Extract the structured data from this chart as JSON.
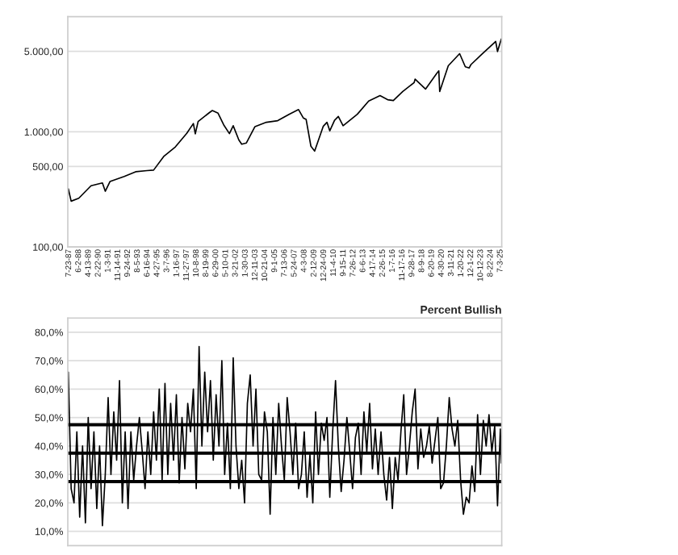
{
  "chart_data": [
    {
      "type": "line",
      "log": true,
      "grid": "y",
      "tick_labels": "xy",
      "xlim": [
        "1987-06-15",
        "2025-08-14"
      ],
      "ylim": [
        100,
        10000
      ],
      "yticks": [
        {
          "value": 100,
          "label": "100,00"
        },
        {
          "value": 500,
          "label": "500,00"
        },
        {
          "value": 1000,
          "label": "1.000,00"
        },
        {
          "value": 5000,
          "label": "5.000,00"
        }
      ],
      "xticks": [
        {
          "value": "1987-07-23",
          "label": "7-23-87"
        },
        {
          "value": "1988-06-02",
          "label": "6-2-88"
        },
        {
          "value": "1989-04-13",
          "label": "4-13-89"
        },
        {
          "value": "1990-02-22",
          "label": "2-22-90"
        },
        {
          "value": "1991-01-03",
          "label": "1-3-91"
        },
        {
          "value": "1991-11-14",
          "label": "11-14-91"
        },
        {
          "value": "1992-09-24",
          "label": "9-24-92"
        },
        {
          "value": "1993-08-05",
          "label": "8-5-93"
        },
        {
          "value": "1994-06-16",
          "label": "6-16-94"
        },
        {
          "value": "1995-04-27",
          "label": "4-27-95"
        },
        {
          "value": "1996-03-07",
          "label": "3-7-96"
        },
        {
          "value": "1997-01-16",
          "label": "1-16-97"
        },
        {
          "value": "1997-11-27",
          "label": "11-27-97"
        },
        {
          "value": "1998-10-08",
          "label": "10-8-98"
        },
        {
          "value": "1999-08-19",
          "label": "8-19-99"
        },
        {
          "value": "2000-06-29",
          "label": "6-29-00"
        },
        {
          "value": "2001-05-10",
          "label": "5-10-01"
        },
        {
          "value": "2002-03-21",
          "label": "3-21-02"
        },
        {
          "value": "2003-01-30",
          "label": "1-30-03"
        },
        {
          "value": "2003-12-11",
          "label": "12-11-03"
        },
        {
          "value": "2004-10-21",
          "label": "10-21-04"
        },
        {
          "value": "2005-09-01",
          "label": "9-1-05"
        },
        {
          "value": "2006-07-13",
          "label": "7-13-06"
        },
        {
          "value": "2007-05-24",
          "label": "5-24-07"
        },
        {
          "value": "2008-04-03",
          "label": "4-3-08"
        },
        {
          "value": "2009-02-12",
          "label": "2-12-09"
        },
        {
          "value": "2009-12-24",
          "label": "12-24-09"
        },
        {
          "value": "2010-11-04",
          "label": "11-4-10"
        },
        {
          "value": "2011-09-15",
          "label": "9-15-11"
        },
        {
          "value": "2012-07-26",
          "label": "7-26-12"
        },
        {
          "value": "2013-06-06",
          "label": "6-6-13"
        },
        {
          "value": "2014-04-17",
          "label": "4-17-14"
        },
        {
          "value": "2015-02-26",
          "label": "2-26-15"
        },
        {
          "value": "2016-01-07",
          "label": "1-7-16"
        },
        {
          "value": "2016-11-17",
          "label": "11-17-16"
        },
        {
          "value": "2017-09-28",
          "label": "9-28-17"
        },
        {
          "value": "2018-08-09",
          "label": "8-9-18"
        },
        {
          "value": "2019-06-20",
          "label": "6-20-19"
        },
        {
          "value": "2020-04-30",
          "label": "4-30-20"
        },
        {
          "value": "2021-03-11",
          "label": "3-11-21"
        },
        {
          "value": "2022-01-20",
          "label": "1-20-22"
        },
        {
          "value": "2022-12-01",
          "label": "12-1-22"
        },
        {
          "value": "2023-10-12",
          "label": "10-12-23"
        },
        {
          "value": "2024-08-22",
          "label": "8-22-24"
        },
        {
          "value": "2025-07-03",
          "label": "7-3-25"
        }
      ],
      "series": [
        {
          "color": "#000000",
          "x": [
            "1987-07",
            "1987-10",
            "1988-06",
            "1989-07",
            "1990-07",
            "1990-10",
            "1991-03",
            "1992-06",
            "1993-06",
            "1994-06",
            "1995-01",
            "1995-12",
            "1996-12",
            "1997-12",
            "1998-07",
            "1998-09",
            "1998-12",
            "1999-12",
            "2000-03",
            "2000-09",
            "2001-03",
            "2001-09",
            "2002-01",
            "2002-07",
            "2002-10",
            "2003-03",
            "2003-12",
            "2004-12",
            "2005-12",
            "2006-12",
            "2007-10",
            "2008-03",
            "2008-06",
            "2008-11",
            "2009-03",
            "2009-12",
            "2010-04",
            "2010-07",
            "2010-12",
            "2011-04",
            "2011-09",
            "2012-12",
            "2013-12",
            "2014-12",
            "2015-08",
            "2016-02",
            "2016-12",
            "2017-12",
            "2018-01",
            "2018-12",
            "2019-12",
            "2020-02",
            "2020-03",
            "2020-12",
            "2021-12",
            "2022-06",
            "2022-10",
            "2022-12",
            "2023-12",
            "2024-12",
            "2025-02",
            "2025-04",
            "2025-08"
          ],
          "values": [
            320,
            250,
            265,
            340,
            360,
            305,
            370,
            410,
            450,
            460,
            465,
            615,
            740,
            970,
            1180,
            960,
            1230,
            1470,
            1530,
            1450,
            1150,
            965,
            1130,
            850,
            780,
            800,
            1110,
            1210,
            1250,
            1420,
            1560,
            1320,
            1280,
            750,
            680,
            1115,
            1210,
            1020,
            1260,
            1360,
            1130,
            1420,
            1850,
            2060,
            1900,
            1870,
            2240,
            2680,
            2870,
            2350,
            3230,
            3380,
            2240,
            3750,
            4770,
            3670,
            3580,
            3840,
            4770,
            5880,
            6100,
            4980,
            6400
          ]
        }
      ]
    },
    {
      "type": "line",
      "title": "Percent Bullish",
      "grid": "y",
      "tick_labels": "y",
      "xlim": [
        "1987-06-15",
        "2025-08-14"
      ],
      "ylim": [
        5,
        85
      ],
      "yticks": [
        {
          "value": 10,
          "label": "10,0%"
        },
        {
          "value": 20,
          "label": "20,0%"
        },
        {
          "value": 30,
          "label": "30,0%"
        },
        {
          "value": 40,
          "label": "40,0%"
        },
        {
          "value": 50,
          "label": "50,0%"
        },
        {
          "value": 60,
          "label": "60,0%"
        },
        {
          "value": 70,
          "label": "70,0%"
        },
        {
          "value": 80,
          "label": "80,0%"
        }
      ],
      "ref_lines": [
        {
          "axis": "y",
          "value": 47.5,
          "color": "#000000"
        },
        {
          "axis": "y",
          "value": 37.5,
          "color": "#000000"
        },
        {
          "axis": "y",
          "value": 27.5,
          "color": "#000000"
        }
      ],
      "series": [
        {
          "color": "#000000",
          "x": [
            "1987-07",
            "1987-10",
            "1988-01",
            "1988-04",
            "1988-07",
            "1988-10",
            "1989-01",
            "1989-04",
            "1989-07",
            "1989-10",
            "1990-01",
            "1990-04",
            "1990-07",
            "1990-10",
            "1991-01",
            "1991-04",
            "1991-07",
            "1991-10",
            "1992-01",
            "1992-04",
            "1992-07",
            "1992-10",
            "1993-01",
            "1993-04",
            "1993-07",
            "1993-10",
            "1994-01",
            "1994-04",
            "1994-07",
            "1994-10",
            "1995-01",
            "1995-04",
            "1995-07",
            "1995-10",
            "1996-01",
            "1996-04",
            "1996-07",
            "1996-10",
            "1997-01",
            "1997-04",
            "1997-07",
            "1997-10",
            "1998-01",
            "1998-04",
            "1998-07",
            "1998-10",
            "1999-01",
            "1999-04",
            "1999-07",
            "1999-10",
            "2000-01",
            "2000-04",
            "2000-07",
            "2000-10",
            "2001-01",
            "2001-04",
            "2001-07",
            "2001-10",
            "2002-01",
            "2002-04",
            "2002-07",
            "2002-10",
            "2003-01",
            "2003-04",
            "2003-07",
            "2003-10",
            "2004-01",
            "2004-04",
            "2004-07",
            "2004-10",
            "2005-01",
            "2005-04",
            "2005-07",
            "2005-10",
            "2006-01",
            "2006-04",
            "2006-07",
            "2006-10",
            "2007-01",
            "2007-04",
            "2007-07",
            "2007-10",
            "2008-01",
            "2008-04",
            "2008-07",
            "2008-10",
            "2009-01",
            "2009-04",
            "2009-07",
            "2009-10",
            "2010-01",
            "2010-04",
            "2010-07",
            "2010-10",
            "2011-01",
            "2011-04",
            "2011-07",
            "2011-10",
            "2012-01",
            "2012-04",
            "2012-07",
            "2012-10",
            "2013-01",
            "2013-04",
            "2013-07",
            "2013-10",
            "2014-01",
            "2014-04",
            "2014-07",
            "2014-10",
            "2015-01",
            "2015-04",
            "2015-07",
            "2015-10",
            "2016-01",
            "2016-04",
            "2016-07",
            "2016-10",
            "2017-01",
            "2017-04",
            "2017-07",
            "2017-10",
            "2018-01",
            "2018-04",
            "2018-07",
            "2018-10",
            "2019-01",
            "2019-04",
            "2019-07",
            "2019-10",
            "2020-01",
            "2020-04",
            "2020-07",
            "2020-10",
            "2021-01",
            "2021-04",
            "2021-07",
            "2021-10",
            "2022-01",
            "2022-04",
            "2022-07",
            "2022-10",
            "2023-01",
            "2023-04",
            "2023-07",
            "2023-10",
            "2024-01",
            "2024-04",
            "2024-07",
            "2024-10",
            "2025-01",
            "2025-04",
            "2025-07",
            "2025-08"
          ],
          "values": [
            66,
            25,
            20,
            45,
            15,
            40,
            13,
            50,
            25,
            45,
            18,
            40,
            12,
            30,
            57,
            30,
            52,
            35,
            63,
            20,
            45,
            18,
            45,
            28,
            40,
            50,
            38,
            25,
            45,
            30,
            52,
            35,
            60,
            28,
            62,
            30,
            55,
            35,
            58,
            27,
            50,
            32,
            55,
            45,
            60,
            25,
            75,
            40,
            66,
            45,
            63,
            35,
            58,
            40,
            70,
            30,
            48,
            25,
            71,
            40,
            25,
            35,
            20,
            55,
            65,
            40,
            60,
            30,
            28,
            52,
            45,
            16,
            50,
            30,
            55,
            40,
            28,
            57,
            45,
            30,
            48,
            25,
            30,
            45,
            22,
            37,
            20,
            52,
            30,
            48,
            42,
            50,
            22,
            45,
            63,
            40,
            24,
            35,
            50,
            38,
            25,
            43,
            48,
            30,
            52,
            38,
            55,
            32,
            46,
            30,
            45,
            30,
            21,
            36,
            18,
            36,
            28,
            45,
            58,
            30,
            40,
            52,
            60,
            32,
            46,
            36,
            40,
            47,
            34,
            42,
            50,
            25,
            27,
            40,
            57,
            46,
            40,
            49,
            28,
            16,
            22,
            20,
            33,
            24,
            51,
            30,
            49,
            40,
            51,
            38,
            47,
            19,
            46,
            34
          ]
        }
      ]
    }
  ]
}
